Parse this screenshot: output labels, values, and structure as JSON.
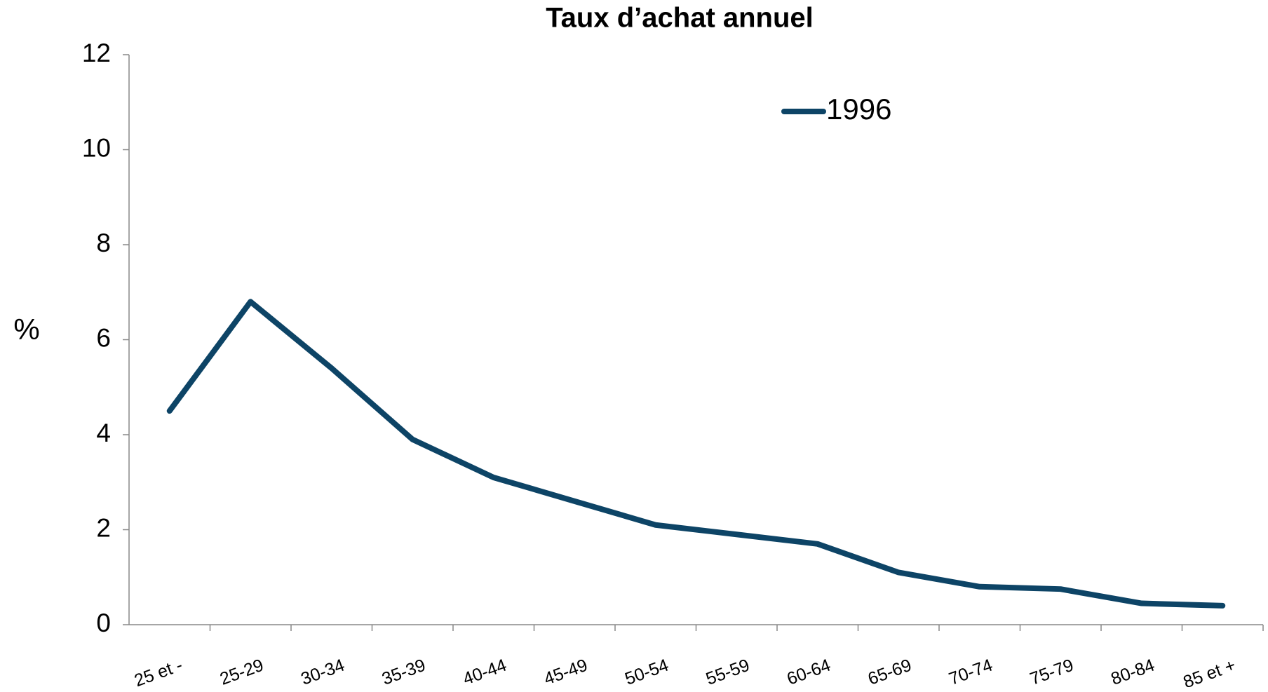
{
  "chart_data": {
    "type": "line",
    "title": "Taux d’achat annuel",
    "y_label": "%",
    "categories": [
      "25 et -",
      "25-29",
      "30-34",
      "35-39",
      "40-44",
      "45-49",
      "50-54",
      "55-59",
      "60-64",
      "65-69",
      "70-74",
      "75-79",
      "80-84",
      "85 et +"
    ],
    "series": [
      {
        "name": "1996",
        "color": "#0d4466",
        "values": [
          4.5,
          6.8,
          5.4,
          3.9,
          3.1,
          2.6,
          2.1,
          1.9,
          1.7,
          1.1,
          0.8,
          0.75,
          0.45,
          0.4
        ]
      }
    ],
    "ylim": [
      0,
      12
    ],
    "yticks": [
      0,
      2,
      4,
      6,
      8,
      10,
      12
    ],
    "grid": false,
    "legend": "top"
  }
}
